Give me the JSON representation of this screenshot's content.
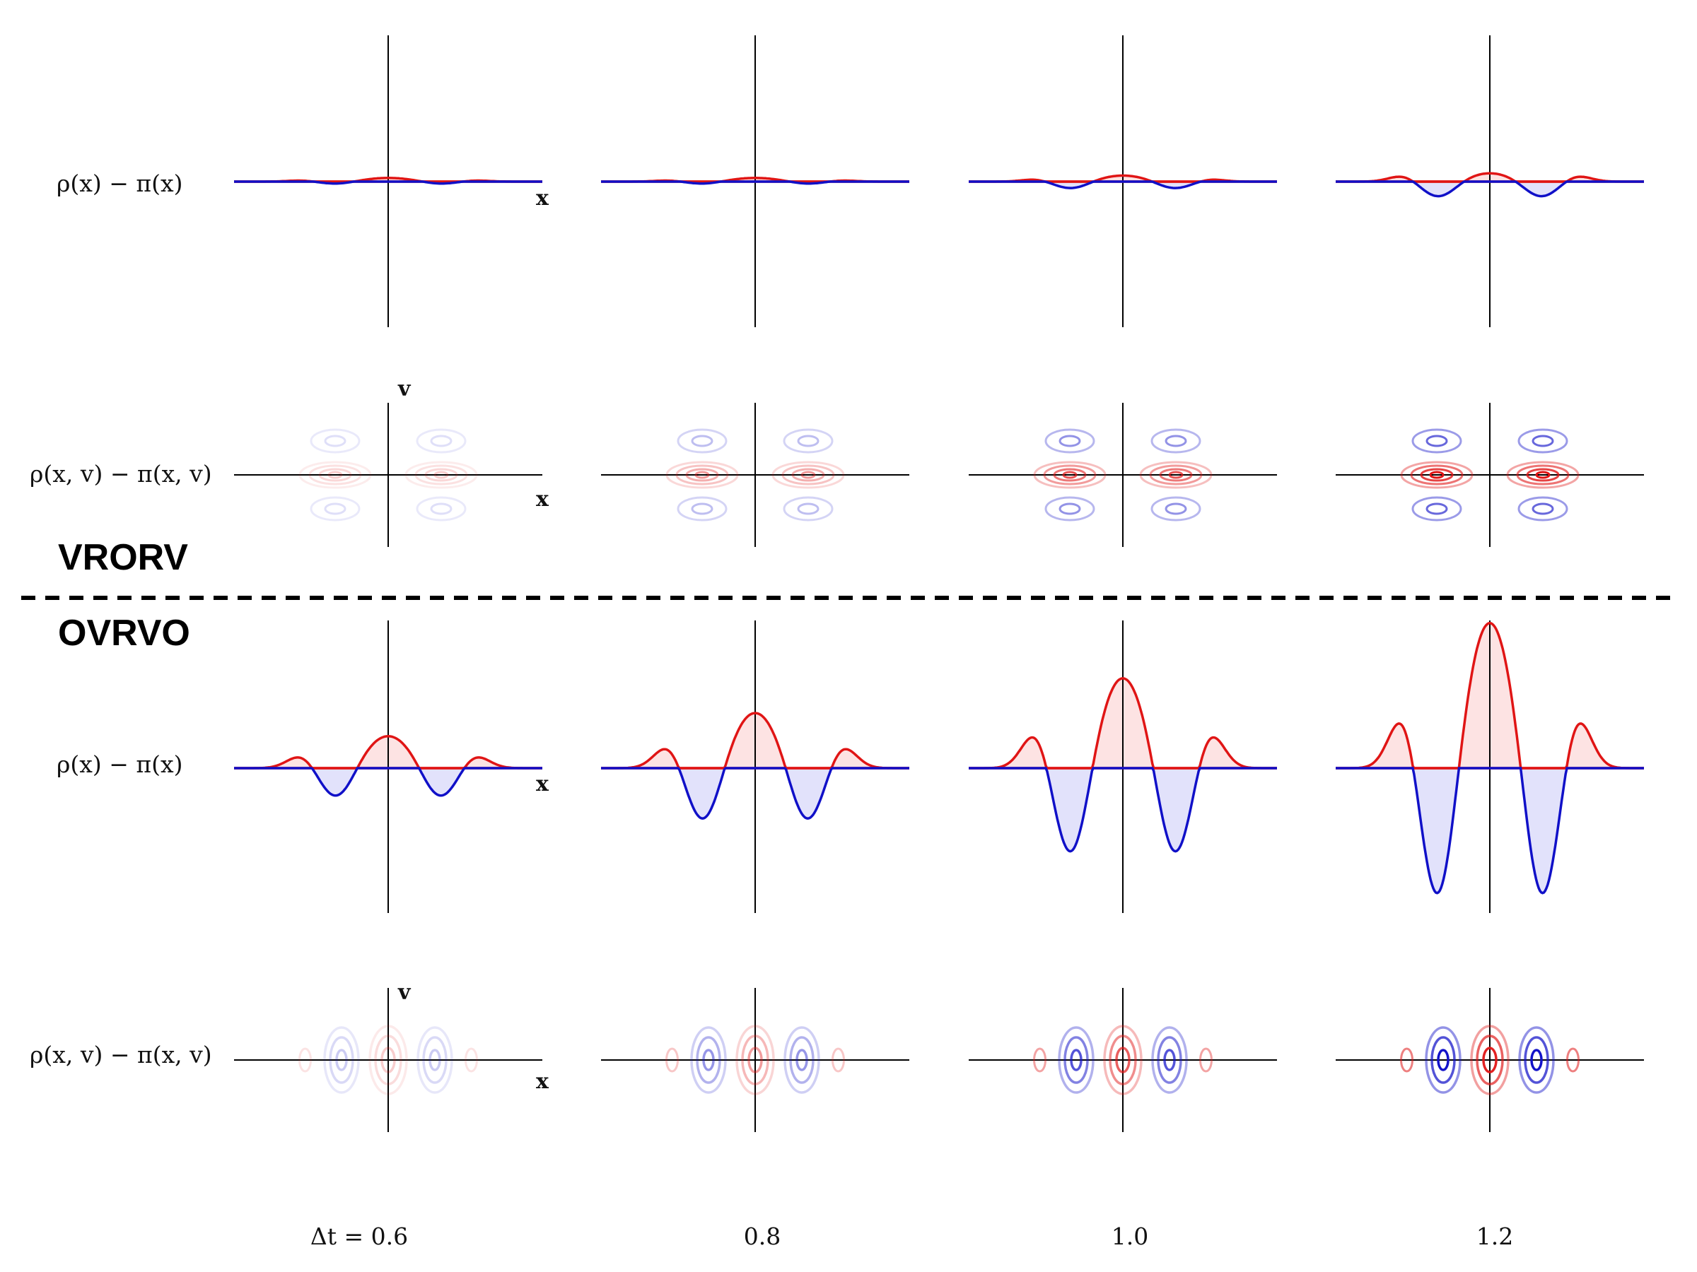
{
  "colors": {
    "positive": "#e01515",
    "negative": "#1010c8",
    "positive_fill": "#fde3e3",
    "negative_fill": "#e2e2fb"
  },
  "chart_data": {
    "type": "line",
    "description_free": true,
    "columns": [
      "Δt = 0.6",
      "0.8",
      "1.0",
      "1.2"
    ],
    "dt": [
      0.6,
      0.8,
      1.0,
      1.2
    ],
    "row_labels": {
      "density_1d": "ρ(x) − π(x)",
      "density_2d": "ρ(x, v) − π(x, v)"
    },
    "axis_labels": {
      "x": "x",
      "v": "v"
    },
    "sections": [
      {
        "name": "VRORV",
        "line_plots": [
          {
            "column": "Δt = 0.6",
            "peaks": {
              "center": 0.03,
              "inner_neg": -0.02,
              "outer_pos": 0.01
            }
          },
          {
            "column": "0.8",
            "peaks": {
              "center": 0.03,
              "inner_neg": -0.02,
              "outer_pos": 0.01
            }
          },
          {
            "column": "1.0",
            "peaks": {
              "center": 0.05,
              "inner_neg": -0.06,
              "outer_pos": 0.02
            }
          },
          {
            "column": "1.2",
            "peaks": {
              "center": 0.07,
              "inner_neg": -0.13,
              "outer_pos": 0.05
            }
          }
        ],
        "contour_plots": [
          {
            "column": "Δt = 0.6",
            "intensity": 0.15
          },
          {
            "column": "0.8",
            "intensity": 0.3
          },
          {
            "column": "1.0",
            "intensity": 0.5
          },
          {
            "column": "1.2",
            "intensity": 0.7
          }
        ]
      },
      {
        "name": "OVRVO",
        "line_plots": [
          {
            "column": "Δt = 0.6",
            "peaks": {
              "center": 0.22,
              "inner_neg": -0.22,
              "outer_pos": 0.09
            }
          },
          {
            "column": "0.8",
            "peaks": {
              "center": 0.38,
              "inner_neg": -0.4,
              "outer_pos": 0.16
            }
          },
          {
            "column": "1.0",
            "peaks": {
              "center": 0.62,
              "inner_neg": -0.66,
              "outer_pos": 0.26
            }
          },
          {
            "column": "1.2",
            "peaks": {
              "center": 1.0,
              "inner_neg": -1.0,
              "outer_pos": 0.38
            }
          }
        ],
        "contour_plots": [
          {
            "column": "Δt = 0.6",
            "intensity": 0.2
          },
          {
            "column": "0.8",
            "intensity": 0.4
          },
          {
            "column": "1.0",
            "intensity": 0.65
          },
          {
            "column": "1.2",
            "intensity": 0.9
          }
        ]
      }
    ]
  }
}
